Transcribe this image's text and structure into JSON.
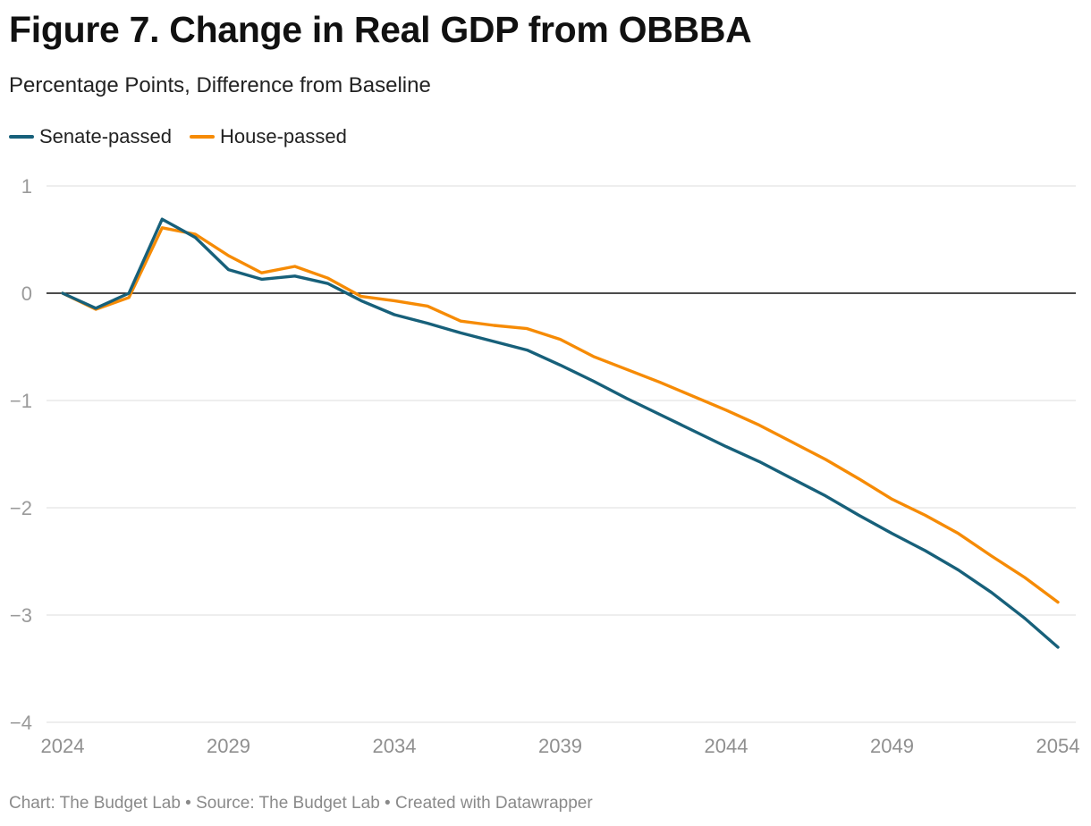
{
  "title": "Figure 7. Change in Real GDP from OBBBA",
  "subtitle": "Percentage Points, Difference from Baseline",
  "footer": {
    "chart_credit": "Chart: The Budget Lab",
    "separator": " • ",
    "source": "Source: The Budget Lab",
    "created_with": "Created with Datawrapper"
  },
  "colors": {
    "senate": "#17607A",
    "house": "#F68B05",
    "zero_line": "#111111",
    "grid": "#E3E3E3",
    "tick_label": "#9A9A9A"
  },
  "chart_data": {
    "type": "line",
    "title": "Figure 7. Change in Real GDP from OBBBA",
    "subtitle": "Percentage Points, Difference from Baseline",
    "xlabel": "",
    "ylabel": "",
    "x": [
      2024,
      2025,
      2026,
      2027,
      2028,
      2029,
      2030,
      2031,
      2032,
      2033,
      2034,
      2035,
      2036,
      2037,
      2038,
      2039,
      2040,
      2041,
      2042,
      2043,
      2044,
      2045,
      2046,
      2047,
      2048,
      2049,
      2050,
      2051,
      2052,
      2053,
      2054
    ],
    "xlim": [
      2024,
      2054
    ],
    "ylim": [
      -4,
      1
    ],
    "x_ticks": [
      "2024",
      "2029",
      "2034",
      "2039",
      "2044",
      "2049",
      "2054"
    ],
    "x_tick_values": [
      2024,
      2029,
      2034,
      2039,
      2044,
      2049,
      2054
    ],
    "y_ticks": [
      "1",
      "0",
      "−1",
      "−2",
      "−3",
      "−4"
    ],
    "y_tick_values": [
      1,
      0,
      -1,
      -2,
      -3,
      -4
    ],
    "grid": true,
    "legend_position": "top-left",
    "series": [
      {
        "name": "Senate-passed",
        "key": "senate",
        "values": [
          0.0,
          -0.14,
          0.0,
          0.69,
          0.52,
          0.22,
          0.13,
          0.16,
          0.09,
          -0.07,
          -0.2,
          -0.28,
          -0.37,
          -0.45,
          -0.53,
          -0.67,
          -0.82,
          -0.98,
          -1.13,
          -1.28,
          -1.43,
          -1.57,
          -1.73,
          -1.89,
          -2.07,
          -2.24,
          -2.4,
          -2.58,
          -2.79,
          -3.03,
          -3.3
        ]
      },
      {
        "name": "House-passed",
        "key": "house",
        "values": [
          0.0,
          -0.15,
          -0.04,
          0.61,
          0.55,
          0.35,
          0.19,
          0.25,
          0.14,
          -0.03,
          -0.07,
          -0.12,
          -0.26,
          -0.3,
          -0.33,
          -0.43,
          -0.59,
          -0.71,
          -0.83,
          -0.96,
          -1.09,
          -1.23,
          -1.39,
          -1.55,
          -1.73,
          -1.92,
          -2.07,
          -2.24,
          -2.45,
          -2.65,
          -2.88
        ]
      }
    ]
  }
}
